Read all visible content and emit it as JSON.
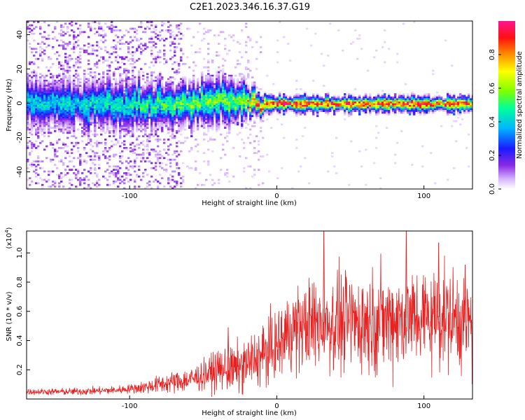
{
  "figure": {
    "title": "C2E1.2023.346.16.37.G19"
  },
  "colors": {
    "snr_line": "#e82020",
    "colormap": [
      "#ffffff",
      "#d6b4ff",
      "#8a2be2",
      "#1a1aff",
      "#00b4ff",
      "#00ff9c",
      "#7cff00",
      "#ffff00",
      "#ff9000",
      "#ff1010",
      "#ff1493"
    ]
  },
  "chart_data": [
    {
      "type": "heatmap",
      "name": "spectrogram",
      "xlabel": "Height of straight line (km)",
      "ylabel": "Frequency (Hz)",
      "xlim": [
        -170,
        133
      ],
      "ylim": [
        -50,
        48
      ],
      "xticks": [
        -100,
        0,
        100
      ],
      "xtick_labels": [
        "-100",
        "0",
        "100"
      ],
      "yticks": [
        -40,
        -20,
        0,
        20,
        40
      ],
      "ytick_labels": [
        "-40",
        "-20",
        "0",
        "20",
        "40"
      ],
      "colorbar": {
        "label": "Normalized spectral amplitude",
        "range": [
          0,
          1
        ],
        "ticks": [
          0.0,
          0.2,
          0.4,
          0.6,
          0.8
        ],
        "tick_labels": [
          "0.0",
          "0.2",
          "0.4",
          "0.6",
          "0.8"
        ]
      },
      "description_points": [
        {
          "x": -160,
          "center_hz": 1,
          "spread_hz": 6,
          "peak": 0.4
        },
        {
          "x": -100,
          "center_hz": -1,
          "spread_hz": 6,
          "peak": 0.45
        },
        {
          "x": -60,
          "center_hz": 0,
          "spread_hz": 5,
          "peak": 0.55
        },
        {
          "x": -30,
          "center_hz": 2,
          "spread_hz": 6,
          "peak": 0.55
        },
        {
          "x": -10,
          "center_hz": 0,
          "spread_hz": 2,
          "peak": 0.9
        },
        {
          "x": 20,
          "center_hz": 0,
          "spread_hz": 2,
          "peak": 0.9
        },
        {
          "x": 130,
          "center_hz": 0,
          "spread_hz": 2,
          "peak": 0.9
        }
      ]
    },
    {
      "type": "line",
      "name": "snr",
      "xlabel": "Height of straight line (km)",
      "ylabel": "SNR (10 * v/v)",
      "scale_label": "(x10",
      "scale_exp": "4",
      "scale_close": ")",
      "xlim": [
        -170,
        133
      ],
      "ylim": [
        0,
        1.15
      ],
      "xticks": [
        -100,
        0,
        100
      ],
      "xtick_labels": [
        "-100",
        "0",
        "100"
      ],
      "yticks": [
        0.2,
        0.4,
        0.6,
        0.8,
        1.0
      ],
      "ytick_labels": [
        "0.2",
        "0.4",
        "0.6",
        "0.8",
        "1.0"
      ],
      "trend": {
        "x": [
          -170,
          -140,
          -110,
          -90,
          -80,
          -60,
          -50,
          -40,
          -35,
          -28,
          -20,
          -10,
          -5,
          0,
          5,
          10,
          20,
          30,
          40,
          60,
          80,
          100,
          120,
          133
        ],
        "y": [
          0.05,
          0.05,
          0.06,
          0.08,
          0.1,
          0.13,
          0.16,
          0.2,
          0.2,
          0.2,
          0.24,
          0.3,
          0.33,
          0.35,
          0.42,
          0.48,
          0.5,
          0.52,
          0.52,
          0.53,
          0.55,
          0.56,
          0.56,
          0.5
        ]
      },
      "spread": {
        "x": [
          -170,
          -100,
          -80,
          -50,
          -30,
          -10,
          0,
          10,
          30,
          60,
          100,
          133
        ],
        "y": [
          0.01,
          0.015,
          0.03,
          0.05,
          0.08,
          0.1,
          0.12,
          0.14,
          0.16,
          0.17,
          0.17,
          0.16
        ]
      },
      "peaks": [
        {
          "x": -33,
          "y": 0.49
        },
        {
          "x": 32,
          "y": 1.17
        },
        {
          "x": 88,
          "y": 1.17
        },
        {
          "x": 110,
          "y": 1.07
        },
        {
          "x": 128,
          "y": 0.92
        }
      ]
    }
  ]
}
